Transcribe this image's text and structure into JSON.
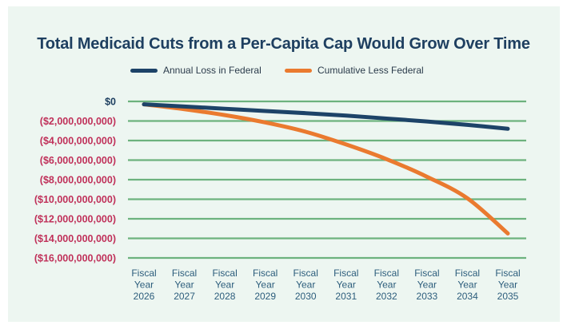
{
  "chart_data": {
    "type": "line",
    "title": "Total Medicaid Cuts from a Per-Capita Cap Would Grow Over Time",
    "xlabel": "",
    "ylabel": "",
    "categories": [
      [
        "Fiscal",
        "Year",
        "2026"
      ],
      [
        "Fiscal",
        "Year",
        "2027"
      ],
      [
        "Fiscal",
        "Year",
        "2028"
      ],
      [
        "Fiscal",
        "Year",
        "2029"
      ],
      [
        "Fiscal",
        "Year",
        "2030"
      ],
      [
        "Fiscal",
        "Year",
        "2031"
      ],
      [
        "Fiscal",
        "Year",
        "2032"
      ],
      [
        "Fiscal",
        "Year",
        "2033"
      ],
      [
        "Fiscal",
        "Year",
        "2034"
      ],
      [
        "Fiscal",
        "Year",
        "2035"
      ]
    ],
    "series": [
      {
        "name": "Annual Loss in Federal",
        "color": "#1d4368",
        "values": [
          -300000000,
          -520000000,
          -750000000,
          -980000000,
          -1200000000,
          -1450000000,
          -1750000000,
          -2050000000,
          -2400000000,
          -2800000000
        ]
      },
      {
        "name": "Cumulative Less Federal",
        "color": "#ea7a2f",
        "values": [
          -300000000,
          -800000000,
          -1400000000,
          -2150000000,
          -3100000000,
          -4400000000,
          -5900000000,
          -7700000000,
          -9900000000,
          -13500000000
        ]
      }
    ],
    "ylim": [
      -16000000000,
      0
    ],
    "yticks": [
      {
        "value": 0,
        "label": "$0"
      },
      {
        "value": -2000000000,
        "label": "($2,000,000,000)"
      },
      {
        "value": -4000000000,
        "label": "($4,000,000,000)"
      },
      {
        "value": -6000000000,
        "label": "($6,000,000,000)"
      },
      {
        "value": -8000000000,
        "label": "($8,000,000,000)"
      },
      {
        "value": -10000000000,
        "label": "($10,000,000,000)"
      },
      {
        "value": -12000000000,
        "label": "($12,000,000,000)"
      },
      {
        "value": -14000000000,
        "label": "($14,000,000,000)"
      },
      {
        "value": -16000000000,
        "label": "($16,000,000,000)"
      }
    ],
    "grid": true,
    "legend_position": "top-center",
    "colors": {
      "title": "#1e3f60",
      "gridline": "#6db27e",
      "zero_label": "#1e3f60",
      "negative_label": "#c0315a",
      "background": "#edf6f1"
    }
  }
}
